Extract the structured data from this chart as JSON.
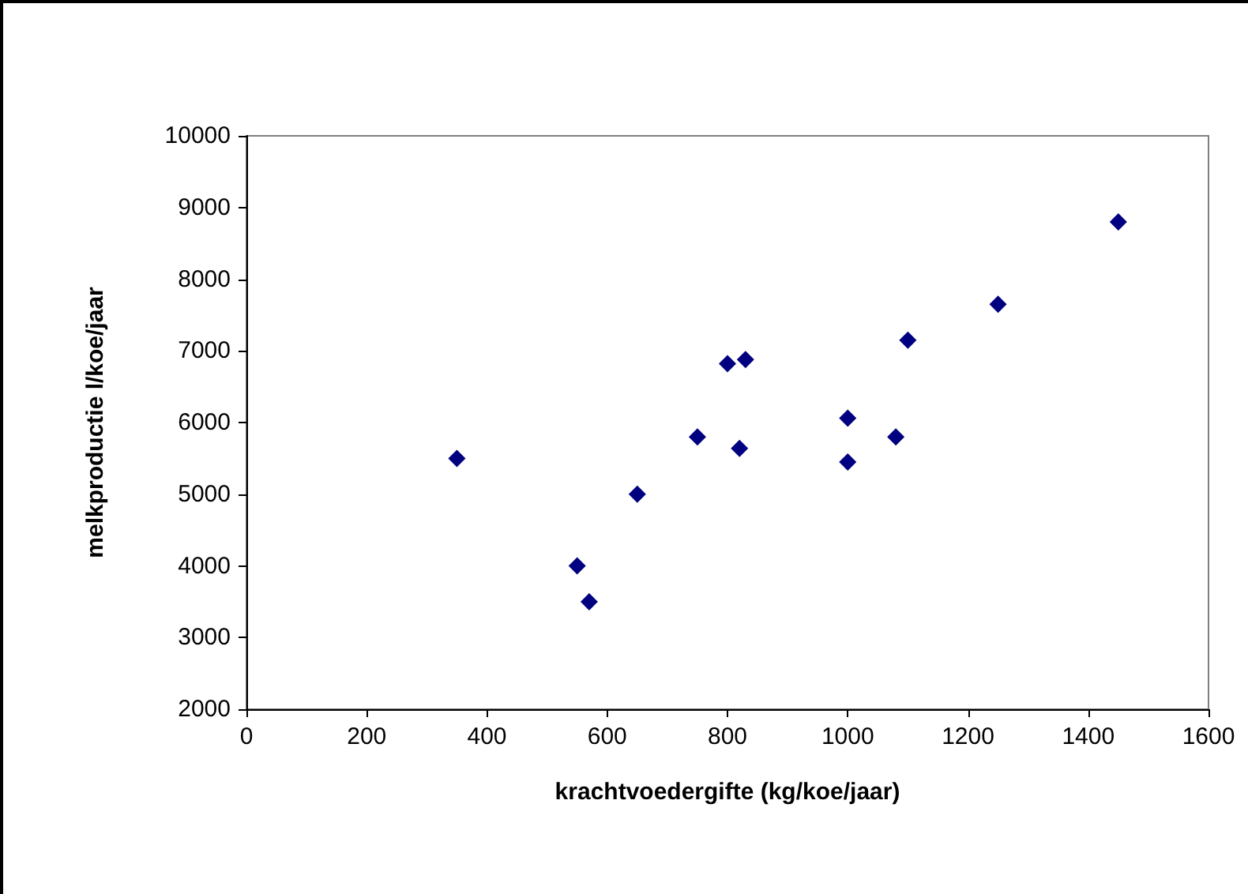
{
  "chart_data": {
    "type": "scatter",
    "xlabel": "krachtvoedergifte (kg/koe/jaar)",
    "ylabel": "melkproductie l/koe/jaar",
    "x": [
      350,
      550,
      570,
      650,
      750,
      800,
      830,
      820,
      1000,
      1000,
      1080,
      1100,
      1250,
      1450
    ],
    "series": [
      {
        "color": "#000080",
        "values": [
          5500,
          4000,
          3500,
          5000,
          5800,
          6820,
          6880,
          5640,
          6060,
          5450,
          5800,
          7150,
          7650,
          8800
        ]
      }
    ],
    "xlim": [
      0,
      1600
    ],
    "xticks": [
      0,
      200,
      400,
      600,
      800,
      1000,
      1200,
      1400,
      1600
    ],
    "ylim": [
      2000,
      10000
    ],
    "yticks": [
      2000,
      3000,
      4000,
      5000,
      6000,
      7000,
      8000,
      9000,
      10000
    ],
    "grid": false,
    "marker": "diamond"
  }
}
